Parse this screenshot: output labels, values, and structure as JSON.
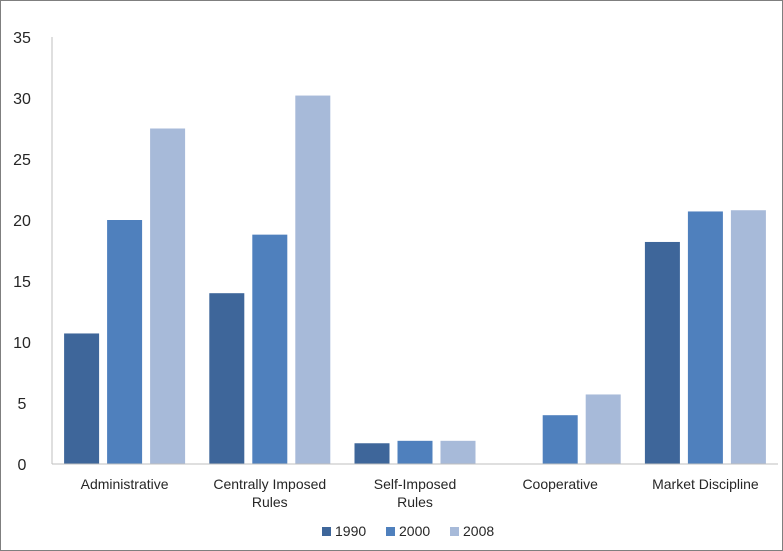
{
  "chart_data": {
    "type": "bar",
    "title": "",
    "xlabel": "",
    "ylabel": "",
    "ylim": [
      0,
      35
    ],
    "yticks": [
      0,
      5,
      10,
      15,
      20,
      25,
      30,
      35
    ],
    "categories": [
      [
        "Administrative"
      ],
      [
        "Centrally Imposed",
        "Rules"
      ],
      [
        "Self-Imposed",
        "Rules"
      ],
      [
        "Cooperative"
      ],
      [
        "Market Discipline"
      ]
    ],
    "series": [
      {
        "name": "1990",
        "color": "#3e669a",
        "values": [
          10.7,
          14.0,
          1.7,
          0,
          18.2
        ]
      },
      {
        "name": "2000",
        "color": "#4f80bd",
        "values": [
          20.0,
          18.8,
          1.9,
          4.0,
          20.7
        ]
      },
      {
        "name": "2008",
        "color": "#a7bad9",
        "values": [
          27.5,
          30.2,
          1.9,
          5.7,
          20.8
        ]
      }
    ],
    "grid": false,
    "legend_position": "bottom"
  }
}
